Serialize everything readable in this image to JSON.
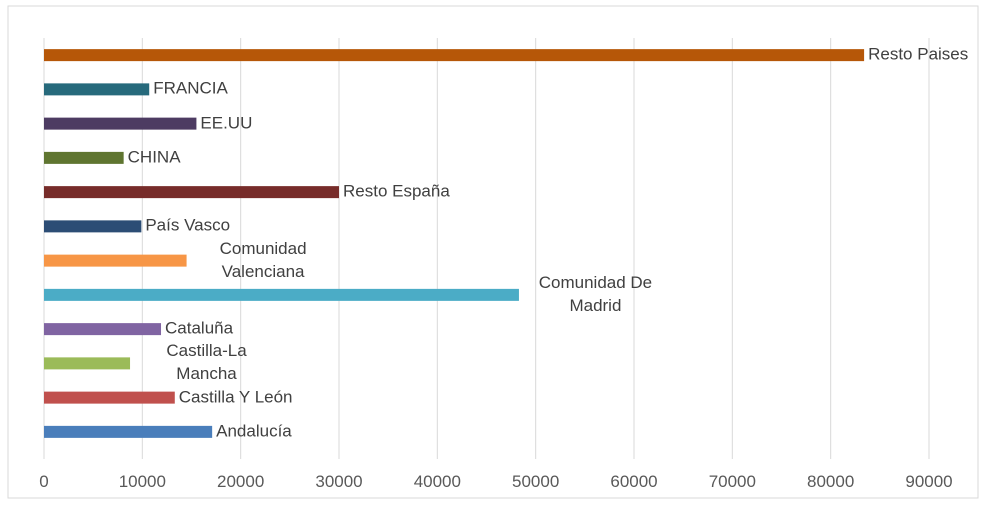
{
  "chart_data": {
    "type": "barh",
    "categories": [
      "Andalucía",
      "Castilla Y León",
      "Castilla-La Mancha",
      "Cataluña",
      "Comunidad De Madrid",
      "Comunidad Valenciana",
      "País Vasco",
      "Resto España",
      "CHINA",
      "EE.UU",
      "FRANCIA",
      "Resto Paises"
    ],
    "values": [
      17100,
      13300,
      8750,
      11900,
      48300,
      14500,
      9900,
      30000,
      8100,
      15500,
      10700,
      83400
    ],
    "colors": [
      "#4a7ebb",
      "#c0504d",
      "#9bbb59",
      "#8064a2",
      "#4bacc6",
      "#f79646",
      "#2c4d75",
      "#772c2a",
      "#5f7530",
      "#4d3b62",
      "#276a7c",
      "#b65708"
    ],
    "xlim": [
      0,
      90000
    ],
    "xticks": [
      0,
      10000,
      20000,
      30000,
      40000,
      50000,
      60000,
      70000,
      80000,
      90000
    ],
    "grid": true
  }
}
